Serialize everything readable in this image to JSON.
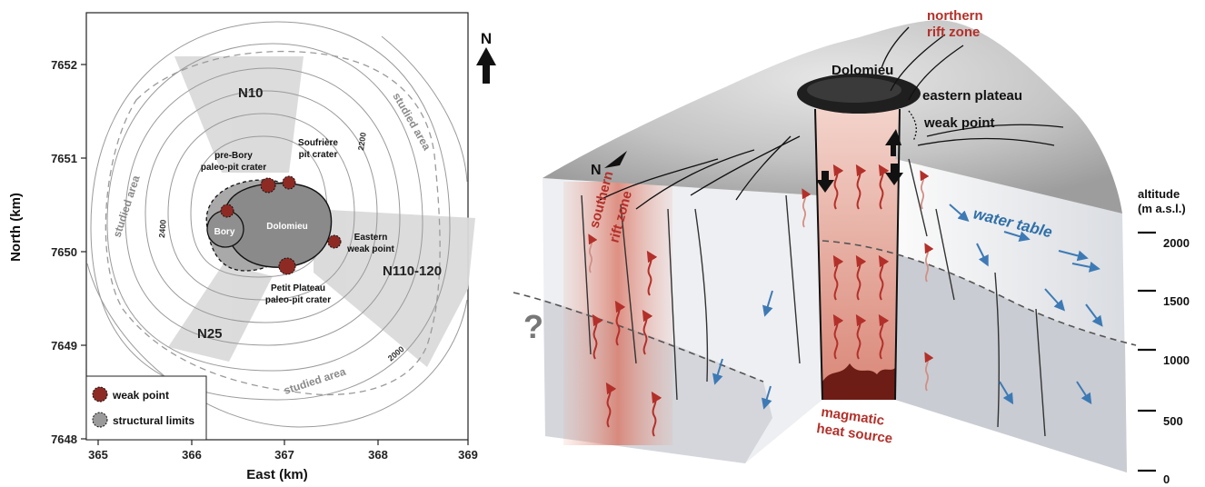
{
  "map": {
    "x_axis_title": "East (km)",
    "y_axis_title": "North (km)",
    "x_ticks": [
      "365",
      "366",
      "367",
      "368",
      "369"
    ],
    "y_ticks": [
      "7652",
      "7651",
      "7650",
      "7649",
      "7648"
    ],
    "north_arrow": "N",
    "zones": [
      "N10",
      "N110-120",
      "N25"
    ],
    "studied_area": [
      "studied area",
      "studied area",
      "studied area"
    ],
    "contours": [
      "2200",
      "2400",
      "2000"
    ],
    "craters": {
      "pre_bory_line1": "pre-Bory",
      "pre_bory_line2": "paleo-pit crater",
      "soufriere_line1": "Soufrière",
      "soufriere_line2": "pit crater",
      "dolomieu": "Dolomieu",
      "bory": "Bory",
      "eastern_line1": "Eastern",
      "eastern_line2": "weak point",
      "petit_line1": "Petit Plateau",
      "petit_line2": "paleo-pit crater"
    },
    "legend": {
      "weak_point": "weak point",
      "structural_limits": "structural limits"
    }
  },
  "block": {
    "northern_rift_line1": "northern",
    "northern_rift_line2": "rift  zone",
    "dolomieu": "Dolomieu",
    "eastern_plateau": "eastern plateau",
    "weak_point": "weak point",
    "north_arrow": "N",
    "southern_rift_line1": "southern",
    "southern_rift_line2": "rift  zone",
    "water_table": "water table",
    "magmatic_line1": "magmatic",
    "magmatic_line2": "heat source",
    "question_mark": "?",
    "altitude_title_line1": "altitude",
    "altitude_title_line2": "(m a.s.l.)",
    "altitude_ticks": [
      "2000",
      "1500",
      "1000",
      "500",
      "0"
    ]
  }
}
